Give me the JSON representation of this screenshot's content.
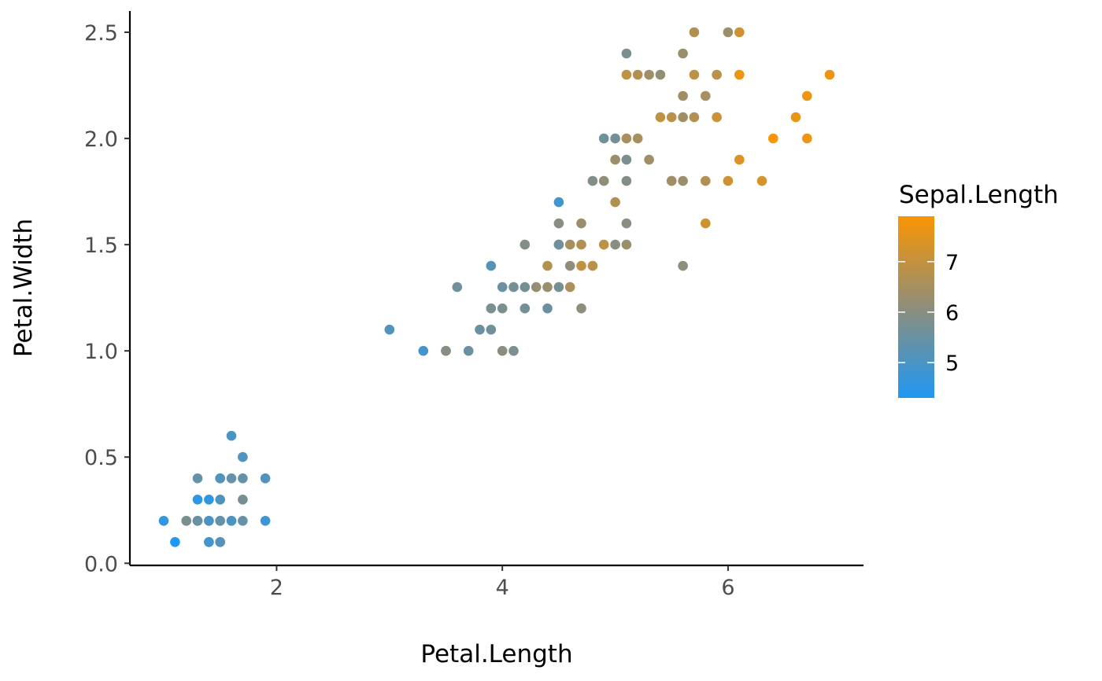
{
  "chart_data": {
    "type": "scatter",
    "title": "",
    "xlabel": "Petal.Length",
    "ylabel": "Petal.Width",
    "xlim": [
      0.7,
      7.2
    ],
    "ylim": [
      -0.01,
      2.6
    ],
    "x_ticks": [
      2,
      4,
      6
    ],
    "y_ticks": [
      0.0,
      2.5,
      2.0,
      1.5,
      1.0,
      0.5
    ],
    "x_tick_labels": [
      "2",
      "4",
      "6"
    ],
    "y_tick_labels": [
      "0.0",
      "2.5",
      "2.0",
      "1.5",
      "1.0",
      "0.5"
    ],
    "grid": false,
    "legend": {
      "title": "Sepal.Length",
      "placement": "right",
      "type": "colorbar",
      "range": [
        4.3,
        7.9
      ],
      "breaks": [
        5,
        6,
        7
      ],
      "break_labels": [
        "5",
        "6",
        "7"
      ],
      "low_color": "#1f98f3",
      "mid_color": "#8e8e7a",
      "high_color": "#f99503"
    },
    "points": [
      [
        1.0,
        0.2,
        4.6
      ],
      [
        1.1,
        0.1,
        4.3
      ],
      [
        1.2,
        0.2,
        5.0
      ],
      [
        1.2,
        0.2,
        5.8
      ],
      [
        1.3,
        0.2,
        4.4
      ],
      [
        1.3,
        0.2,
        4.7
      ],
      [
        1.3,
        0.3,
        4.5
      ],
      [
        1.3,
        0.4,
        5.4
      ],
      [
        1.3,
        0.2,
        5.5
      ],
      [
        1.4,
        0.2,
        5.1
      ],
      [
        1.4,
        0.3,
        4.6
      ],
      [
        1.4,
        0.1,
        4.8
      ],
      [
        1.4,
        0.2,
        5.0
      ],
      [
        1.4,
        0.1,
        4.9
      ],
      [
        1.5,
        0.2,
        5.0
      ],
      [
        1.5,
        0.1,
        4.9
      ],
      [
        1.5,
        0.4,
        5.7
      ],
      [
        1.5,
        0.3,
        5.1
      ],
      [
        1.5,
        0.2,
        5.4
      ],
      [
        1.5,
        0.4,
        5.1
      ],
      [
        1.5,
        0.1,
        5.2
      ],
      [
        1.6,
        0.2,
        4.8
      ],
      [
        1.6,
        0.4,
        5.4
      ],
      [
        1.6,
        0.6,
        5.0
      ],
      [
        1.6,
        0.2,
        5.0
      ],
      [
        1.7,
        0.3,
        5.7
      ],
      [
        1.7,
        0.4,
        5.4
      ],
      [
        1.7,
        0.5,
        5.1
      ],
      [
        1.7,
        0.2,
        5.4
      ],
      [
        1.9,
        0.2,
        4.8
      ],
      [
        1.9,
        0.4,
        5.1
      ],
      [
        3.0,
        1.1,
        5.1
      ],
      [
        3.3,
        1.0,
        4.9
      ],
      [
        3.5,
        1.0,
        5.7
      ],
      [
        3.5,
        1.0,
        6.0
      ],
      [
        3.6,
        1.3,
        5.6
      ],
      [
        3.7,
        1.0,
        5.5
      ],
      [
        3.8,
        1.1,
        5.5
      ],
      [
        3.9,
        1.4,
        5.2
      ],
      [
        3.9,
        1.1,
        5.6
      ],
      [
        3.9,
        1.2,
        5.8
      ],
      [
        4.0,
        1.3,
        5.5
      ],
      [
        4.0,
        1.0,
        6.0
      ],
      [
        4.0,
        1.2,
        5.8
      ],
      [
        4.1,
        1.3,
        5.7
      ],
      [
        4.1,
        1.0,
        5.8
      ],
      [
        4.2,
        1.5,
        5.9
      ],
      [
        4.2,
        1.3,
        5.7
      ],
      [
        4.2,
        1.2,
        5.7
      ],
      [
        4.3,
        1.3,
        6.2
      ],
      [
        4.4,
        1.4,
        6.7
      ],
      [
        4.4,
        1.3,
        6.3
      ],
      [
        4.4,
        1.2,
        5.5
      ],
      [
        4.5,
        1.5,
        6.4
      ],
      [
        4.5,
        1.5,
        5.6
      ],
      [
        4.5,
        1.3,
        5.7
      ],
      [
        4.5,
        1.6,
        6.0
      ],
      [
        4.5,
        1.7,
        4.9
      ],
      [
        4.6,
        1.5,
        6.5
      ],
      [
        4.6,
        1.3,
        6.6
      ],
      [
        4.6,
        1.4,
        6.1
      ],
      [
        4.7,
        1.4,
        7.0
      ],
      [
        4.7,
        1.6,
        6.3
      ],
      [
        4.7,
        1.5,
        6.7
      ],
      [
        4.7,
        1.2,
        6.1
      ],
      [
        4.8,
        1.4,
        6.8
      ],
      [
        4.8,
        1.8,
        5.9
      ],
      [
        4.9,
        1.5,
        6.9
      ],
      [
        4.9,
        2.0,
        5.6
      ],
      [
        4.9,
        1.8,
        6.1
      ],
      [
        5.0,
        1.7,
        6.7
      ],
      [
        5.0,
        1.5,
        6.0
      ],
      [
        5.0,
        2.0,
        5.7
      ],
      [
        5.0,
        1.9,
        6.3
      ],
      [
        5.1,
        1.6,
        6.0
      ],
      [
        5.1,
        2.4,
        5.8
      ],
      [
        5.1,
        1.9,
        5.8
      ],
      [
        5.1,
        2.0,
        6.5
      ],
      [
        5.1,
        1.8,
        5.9
      ],
      [
        5.1,
        1.5,
        6.3
      ],
      [
        5.1,
        2.3,
        6.9
      ],
      [
        5.2,
        2.3,
        6.7
      ],
      [
        5.2,
        2.0,
        6.5
      ],
      [
        5.3,
        1.9,
        6.4
      ],
      [
        5.3,
        2.3,
        6.4
      ],
      [
        5.4,
        2.3,
        6.2
      ],
      [
        5.4,
        2.1,
        6.9
      ],
      [
        5.5,
        1.8,
        6.5
      ],
      [
        5.5,
        2.1,
        6.8
      ],
      [
        5.5,
        1.8,
        6.4
      ],
      [
        5.6,
        2.4,
        6.3
      ],
      [
        5.6,
        1.4,
        6.1
      ],
      [
        5.6,
        2.2,
        6.4
      ],
      [
        5.6,
        2.1,
        6.4
      ],
      [
        5.6,
        1.8,
        6.3
      ],
      [
        5.7,
        2.5,
        6.7
      ],
      [
        5.7,
        2.3,
        6.9
      ],
      [
        5.7,
        2.1,
        6.7
      ],
      [
        5.8,
        1.8,
        6.7
      ],
      [
        5.8,
        2.2,
        6.5
      ],
      [
        5.8,
        1.6,
        7.2
      ],
      [
        5.9,
        2.3,
        6.8
      ],
      [
        5.9,
        2.1,
        7.1
      ],
      [
        6.0,
        1.8,
        7.2
      ],
      [
        6.0,
        2.5,
        6.3
      ],
      [
        6.1,
        1.9,
        7.4
      ],
      [
        6.1,
        2.5,
        7.2
      ],
      [
        6.1,
        2.3,
        7.7
      ],
      [
        6.3,
        1.8,
        7.3
      ],
      [
        6.4,
        2.0,
        7.9
      ],
      [
        6.6,
        2.1,
        7.6
      ],
      [
        6.7,
        2.0,
        7.7
      ],
      [
        6.7,
        2.2,
        7.7
      ],
      [
        6.9,
        2.3,
        7.7
      ]
    ]
  }
}
